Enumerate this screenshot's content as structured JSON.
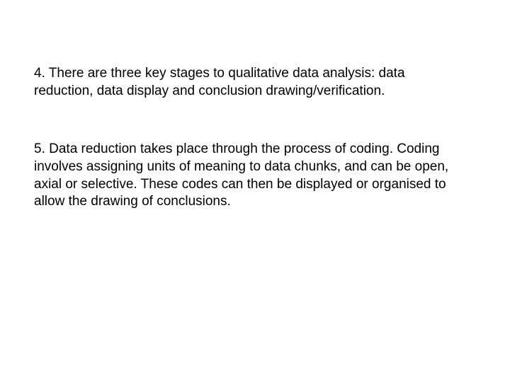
{
  "slide": {
    "background_color": "#ffffff",
    "text_color": "#000000",
    "font_family": "Arial",
    "font_size_pt": 19,
    "paragraphs": [
      {
        "number": "4.",
        "text": "4. There are three key stages to qualitative data analysis: data reduction, data display and conclusion drawing/verification."
      },
      {
        "number": "5.",
        "text": "5. Data reduction takes place through the process of coding. Coding involves assigning units of meaning to data chunks, and can be open, axial or selective. These codes can then be displayed or organised to allow the drawing of conclusions."
      }
    ]
  }
}
